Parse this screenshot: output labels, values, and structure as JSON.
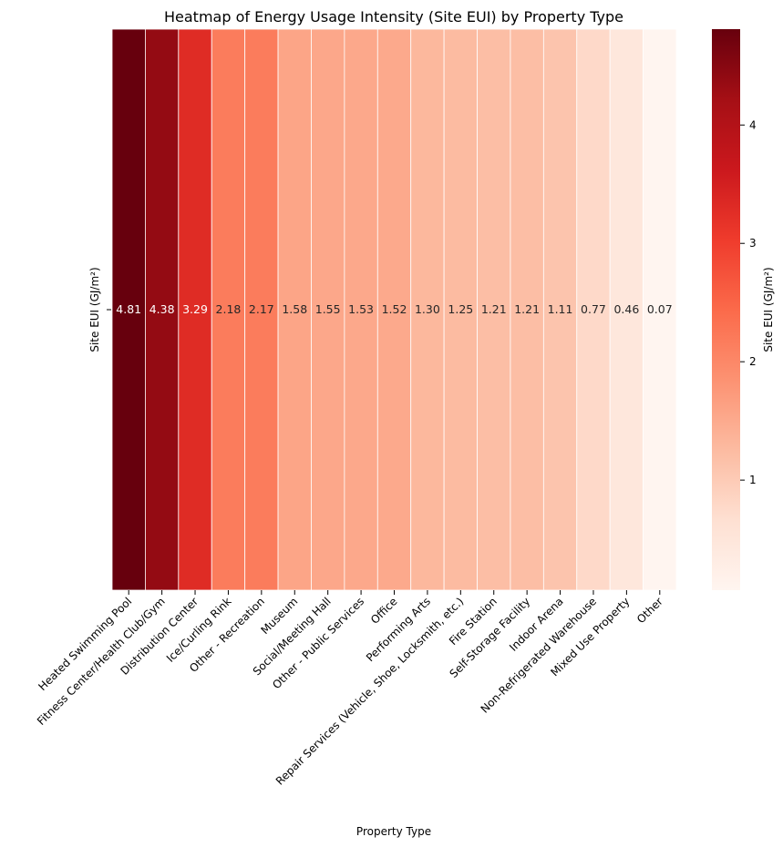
{
  "chart_data": {
    "type": "heatmap",
    "title": "Heatmap of Energy Usage Intensity (Site EUI) by Property Type",
    "xlabel": "Property Type",
    "ylabel": "Site EUI (GJ/m²)",
    "row_labels": [
      "Site EUI (GJ/m²)"
    ],
    "categories": [
      "Heated Swimming Pool",
      "Fitness Center/Health Club/Gym",
      "Distribution Center",
      "Ice/Curling Rink",
      "Other - Recreation",
      "Museum",
      "Social/Meeting Hall",
      "Other - Public Services",
      "Office",
      "Performing Arts",
      "Repair Services (Vehicle, Shoe, Locksmith, etc.)",
      "Fire Station",
      "Self-Storage Facility",
      "Indoor Arena",
      "Non-Refrigerated Warehouse",
      "Mixed Use Property",
      "Other"
    ],
    "values": [
      4.81,
      4.38,
      3.29,
      2.18,
      2.17,
      1.58,
      1.55,
      1.53,
      1.52,
      1.3,
      1.25,
      1.21,
      1.21,
      1.11,
      0.77,
      0.46,
      0.07
    ],
    "value_labels": [
      "4.81",
      "4.38",
      "3.29",
      "2.18",
      "2.17",
      "1.58",
      "1.55",
      "1.53",
      "1.52",
      "1.30",
      "1.25",
      "1.21",
      "1.21",
      "1.11",
      "0.77",
      "0.46",
      "0.07"
    ],
    "colormap": "Reds",
    "colorbar": {
      "label": "Site EUI (GJ/m²)",
      "range": [
        0.07,
        4.81
      ],
      "ticks": [
        1,
        2,
        3,
        4
      ],
      "tick_labels": [
        "1",
        "2",
        "3",
        "4"
      ]
    },
    "colors": {
      "cell_border": "#ffffff",
      "text_light": "#ffffff",
      "text_dark": "#262626",
      "axis": "#000000"
    }
  }
}
